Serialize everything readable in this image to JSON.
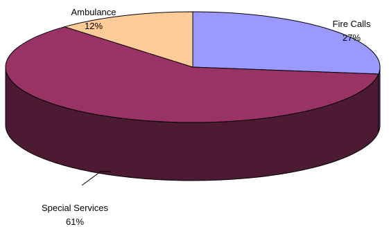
{
  "chart_data": {
    "type": "pie",
    "style": "3d",
    "title": "",
    "legend": "none",
    "slices": [
      {
        "label": "Fire Calls",
        "value": 27,
        "value_label": "27%",
        "color": "#9999ff",
        "side_color": "#4d4d80"
      },
      {
        "label": "Special Services",
        "value": 61,
        "value_label": "61%",
        "color": "#993366",
        "side_color": "#4d1a33"
      },
      {
        "label": "Ambulance",
        "value": 12,
        "value_label": "12%",
        "color": "#ffcc99",
        "side_color": "#80664d"
      }
    ]
  }
}
